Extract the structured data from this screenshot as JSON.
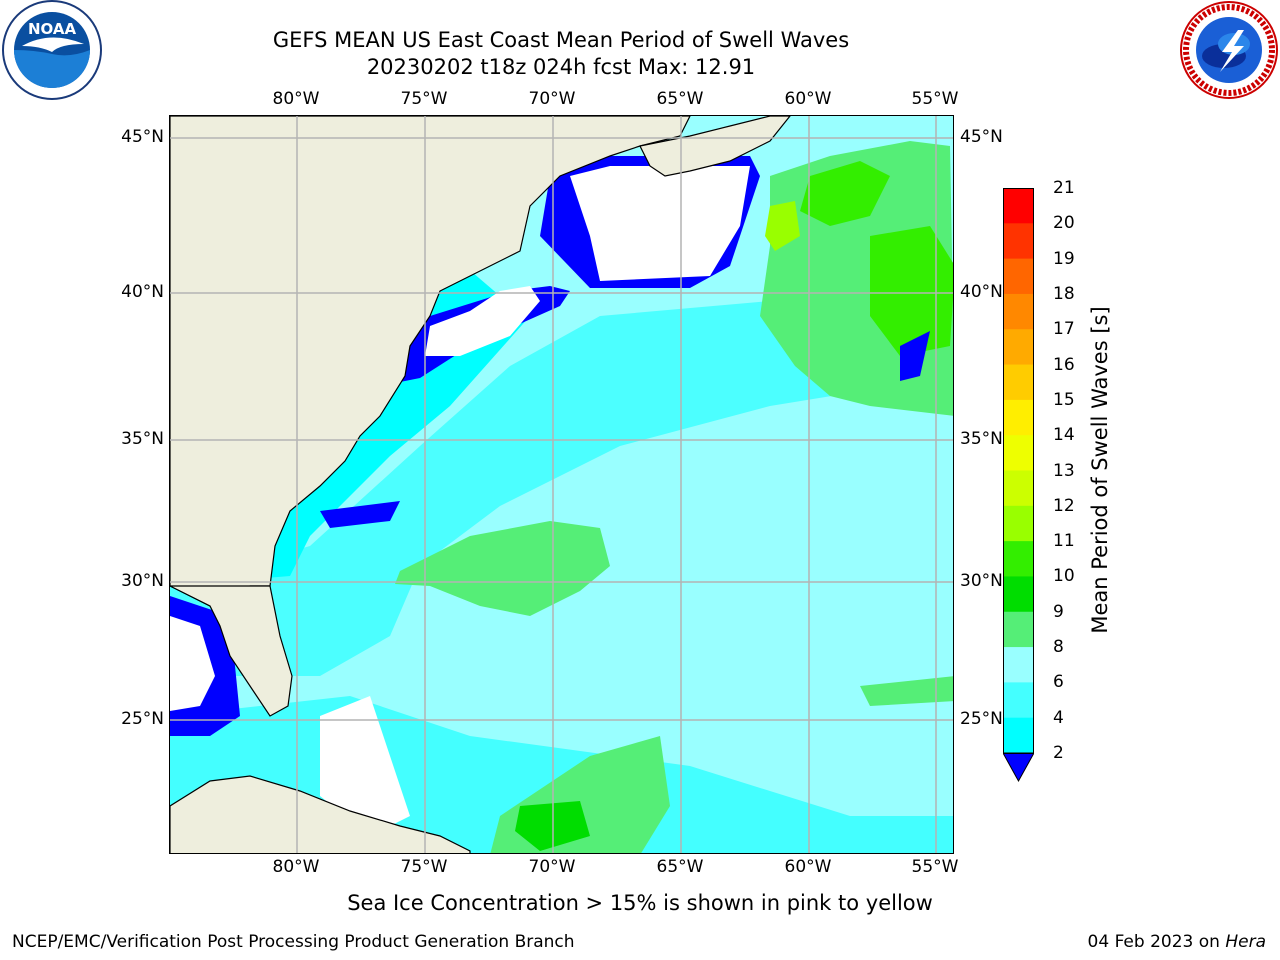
{
  "title_line1": "GEFS MEAN US East Coast Mean Period of Swell Waves",
  "title_line2": "20230202 t18z 024h fcst   Max: 12.91",
  "logos": {
    "left": {
      "icon": "noaa-logo",
      "text": "NOAA"
    },
    "right": {
      "icon": "national-weather-service-logo",
      "text": "NATIONAL WEATHER SERVICE"
    }
  },
  "map": {
    "lon_labels": [
      "80°W",
      "75°W",
      "70°W",
      "65°W",
      "60°W",
      "55°W"
    ],
    "lat_labels": [
      "45°N",
      "40°N",
      "35°N",
      "30°N",
      "25°N"
    ],
    "land_color": "#eeeedd",
    "grid_color": "#b4b4b4"
  },
  "colorbar": {
    "title": "Mean Period of Swell Waves [s]",
    "labels": [
      "21",
      "20",
      "19",
      "18",
      "17",
      "16",
      "15",
      "14",
      "13",
      "12",
      "11",
      "10",
      "9",
      "8",
      "6",
      "4",
      "2"
    ],
    "colors": [
      "#ff0000",
      "#ff3300",
      "#ff6600",
      "#ff8800",
      "#ffaa00",
      "#ffcc00",
      "#ffee00",
      "#eeff00",
      "#ccff00",
      "#99ff00",
      "#33ee00",
      "#00dd00",
      "#55ee77",
      "#99ffff",
      "#44ffff",
      "#00ffff",
      "#00dddd",
      "#0077ff"
    ],
    "extend_color": "#0000ff"
  },
  "footnote": "Sea Ice Concentration > 15% is shown in pink to yellow",
  "footer_left": "NCEP/EMC/Verification Post Processing Product Generation Branch",
  "footer_right_prefix": "04 Feb 2023 on ",
  "footer_right_host": "Hera"
}
